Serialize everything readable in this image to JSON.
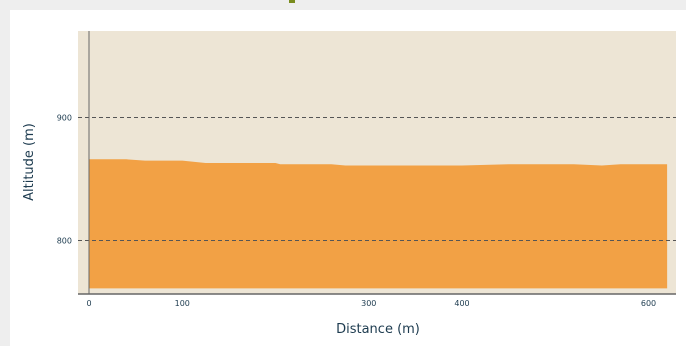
{
  "chart_data": {
    "type": "area",
    "title": "",
    "xlabel": "Distance (m)",
    "ylabel": "Altitude (m)",
    "xlim": [
      0,
      630
    ],
    "ylim": [
      757,
      970
    ],
    "x_ticks": [
      0,
      100,
      300,
      400,
      600
    ],
    "y_ticks": [
      800,
      900
    ],
    "grid": "dashed horizontal at y ticks",
    "series": [
      {
        "x": [
          0,
          40,
          60,
          100,
          125,
          200,
          205,
          260,
          275,
          400,
          450,
          520,
          550,
          570,
          620
        ],
        "y": [
          866,
          866,
          865,
          865,
          863,
          863,
          862,
          862,
          861,
          861,
          862,
          862,
          861,
          862,
          862
        ]
      }
    ],
    "colors": {
      "fill": "#f2a145",
      "plot_background": "#ede5d5",
      "grid": "#555555",
      "axis": "#666666"
    }
  }
}
